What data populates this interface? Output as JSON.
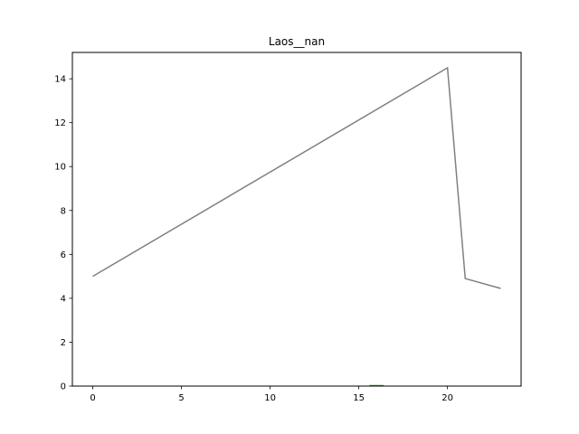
{
  "chart_data": {
    "type": "line",
    "title": "Laos__nan",
    "xlabel": "",
    "ylabel": "",
    "xlim": [
      -1.15,
      24.15
    ],
    "ylim": [
      0,
      15.2
    ],
    "x_ticks": [
      0,
      5,
      10,
      15,
      20
    ],
    "x_tick_labels": [
      "0",
      "5",
      "10",
      "15",
      "20"
    ],
    "y_ticks": [
      0,
      2,
      4,
      6,
      8,
      10,
      12,
      14
    ],
    "y_tick_labels": [
      "0",
      "2",
      "4",
      "6",
      "8",
      "10",
      "12",
      "14"
    ],
    "grid": false,
    "series": [
      {
        "color": "#808080",
        "x": [
          0,
          20,
          21,
          23
        ],
        "y": [
          5.0,
          14.5,
          4.9,
          4.45
        ]
      },
      {
        "color": "#2ca02c",
        "x": [
          15.6,
          16.4
        ],
        "y": [
          0.02,
          0.02
        ]
      }
    ]
  }
}
